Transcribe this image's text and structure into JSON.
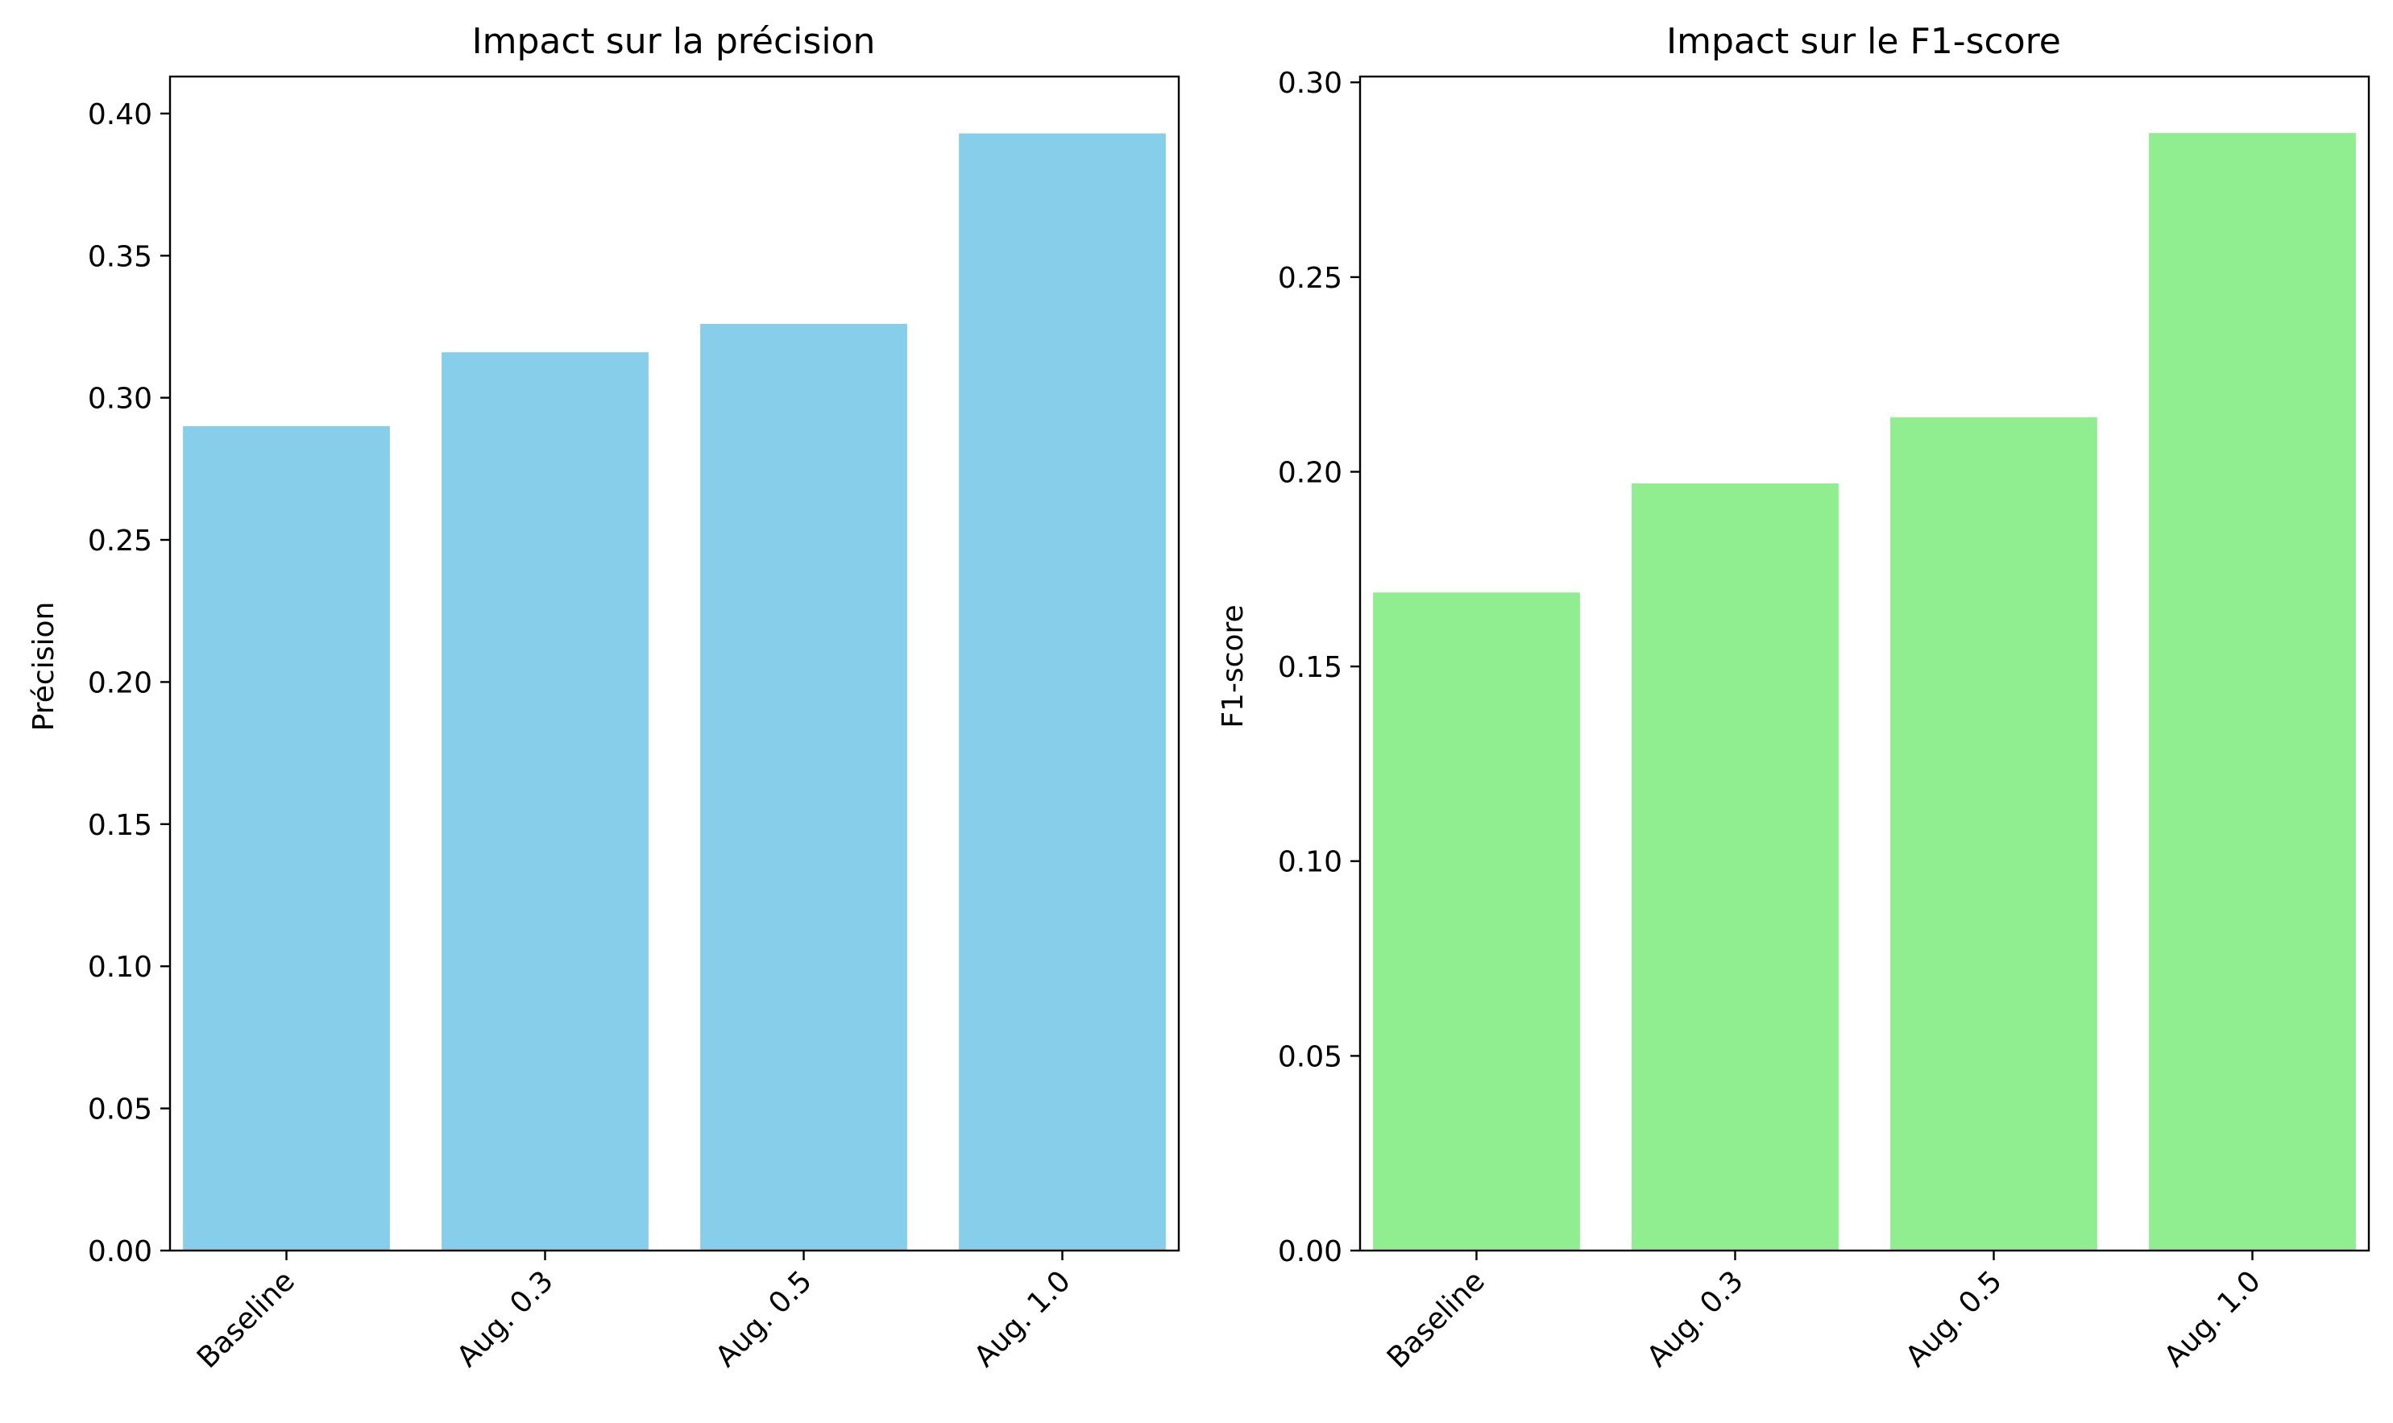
{
  "chart_data": [
    {
      "type": "bar",
      "title": "Impact sur la précision",
      "xlabel": "",
      "ylabel": "Précision",
      "categories": [
        "Baseline",
        "Aug. 0.3",
        "Aug. 0.5",
        "Aug. 1.0"
      ],
      "values": [
        0.29,
        0.316,
        0.326,
        0.393
      ],
      "ylim": [
        0,
        0.413
      ],
      "yticks": [
        0.0,
        0.05,
        0.1,
        0.15,
        0.2,
        0.25,
        0.3,
        0.35,
        0.4
      ],
      "ytick_labels": [
        "0.00",
        "0.05",
        "0.10",
        "0.15",
        "0.20",
        "0.25",
        "0.30",
        "0.35",
        "0.40"
      ],
      "color": "#87ceeb",
      "grid": false,
      "legend": "none"
    },
    {
      "type": "bar",
      "title": "Impact sur le F1-score",
      "xlabel": "",
      "ylabel": "F1-score",
      "categories": [
        "Baseline",
        "Aug. 0.3",
        "Aug. 0.5",
        "Aug. 1.0"
      ],
      "values": [
        0.169,
        0.197,
        0.214,
        0.287
      ],
      "ylim": [
        0,
        0.3015
      ],
      "yticks": [
        0.0,
        0.05,
        0.1,
        0.15,
        0.2,
        0.25,
        0.3
      ],
      "ytick_labels": [
        "0.00",
        "0.05",
        "0.10",
        "0.15",
        "0.20",
        "0.25",
        "0.30"
      ],
      "color": "#90ee90",
      "grid": false,
      "legend": "none"
    }
  ]
}
